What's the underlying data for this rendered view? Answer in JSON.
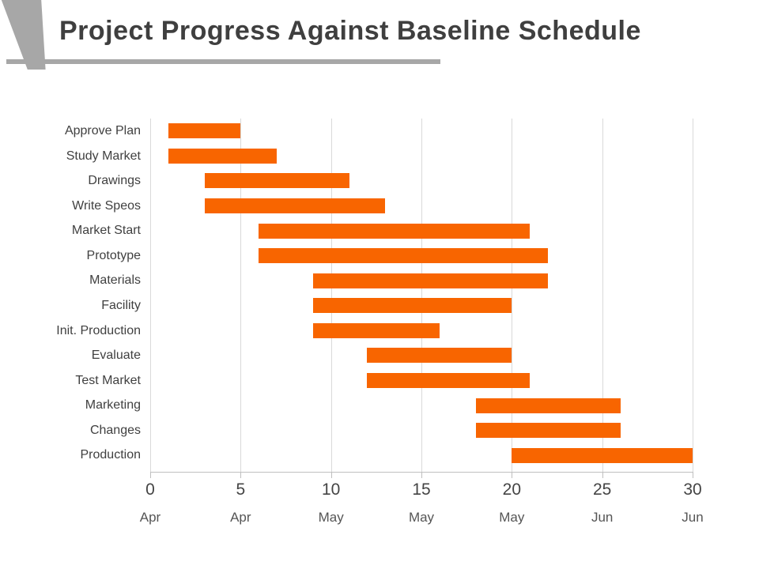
{
  "header": {
    "title": "Project Progress Against Baseline Schedule"
  },
  "colors": {
    "bar_orange": "#f86500",
    "decoration_gray": "#a7a7a7",
    "title_gray": "#3f3f3f",
    "gridline_gray": "#d9d9d9",
    "axis_gray": "#bfbfbf"
  },
  "chart_data": {
    "type": "bar",
    "variant": "gantt-horizontal",
    "title": "Project Progress Against Baseline Schedule",
    "xlabel": "",
    "ylabel": "",
    "xlim": [
      0,
      30
    ],
    "grid": true,
    "legend": false,
    "bar_color": "#f86500",
    "tasks": [
      {
        "name": "Approve Plan",
        "start": 1,
        "end": 5
      },
      {
        "name": "Study Market",
        "start": 1,
        "end": 7
      },
      {
        "name": "Drawings",
        "start": 3,
        "end": 11
      },
      {
        "name": "Write Speos",
        "start": 3,
        "end": 13
      },
      {
        "name": "Market Start",
        "start": 6,
        "end": 21
      },
      {
        "name": "Prototype",
        "start": 6,
        "end": 22
      },
      {
        "name": "Materials",
        "start": 9,
        "end": 22
      },
      {
        "name": "Facility",
        "start": 9,
        "end": 20
      },
      {
        "name": "Init. Production",
        "start": 9,
        "end": 16
      },
      {
        "name": "Evaluate",
        "start": 12,
        "end": 20
      },
      {
        "name": "Test Market",
        "start": 12,
        "end": 21
      },
      {
        "name": "Marketing",
        "start": 18,
        "end": 26
      },
      {
        "name": "Changes",
        "start": 18,
        "end": 26
      },
      {
        "name": "Production",
        "start": 20,
        "end": 30
      }
    ],
    "x_axis": {
      "min": 0,
      "max": 30,
      "tick_step": 5,
      "ticks": [
        {
          "value": 0,
          "label": "0",
          "month": "Apr"
        },
        {
          "value": 5,
          "label": "5",
          "month": "Apr"
        },
        {
          "value": 10,
          "label": "10",
          "month": "May"
        },
        {
          "value": 15,
          "label": "15",
          "month": "May"
        },
        {
          "value": 20,
          "label": "20",
          "month": "May"
        },
        {
          "value": 25,
          "label": "25",
          "month": "Jun"
        },
        {
          "value": 30,
          "label": "30",
          "month": "Jun"
        }
      ]
    }
  }
}
